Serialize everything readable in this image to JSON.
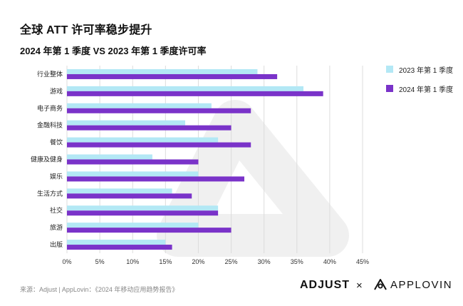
{
  "title": "全球 ATT 许可率稳步提升",
  "subtitle": "2024 年第 1 季度 VS 2023 年第 1 季度许可率",
  "source": "来源：Adjust | AppLovin：《2024 年移动应用趋势报告》",
  "logos": {
    "adjust": "ADJUST",
    "times": "×",
    "applovin": "APPLOVIN"
  },
  "colors": {
    "series_2023": "#b3e8f5",
    "series_2024": "#7a33c9"
  },
  "chart_data": {
    "type": "bar",
    "orientation": "horizontal",
    "categories": [
      "行业整体",
      "游戏",
      "电子商务",
      "金融科技",
      "餐饮",
      "健康及健身",
      "娱乐",
      "生活方式",
      "社交",
      "旅游",
      "出版"
    ],
    "series": [
      {
        "name": "2023 年第 1 季度",
        "values": [
          29,
          36,
          22,
          18,
          23,
          13,
          20,
          16,
          23,
          20,
          15
        ]
      },
      {
        "name": "2024 年第 1 季度",
        "values": [
          32,
          39,
          28,
          25,
          28,
          20,
          27,
          19,
          23,
          25,
          16
        ]
      }
    ],
    "xlim": [
      0,
      45
    ],
    "xticks": [
      "0%",
      "5%",
      "10%",
      "15%",
      "20%",
      "25%",
      "30%",
      "35%",
      "40%",
      "45%"
    ],
    "tick_values": [
      0,
      5,
      10,
      15,
      20,
      25,
      30,
      35,
      40,
      45
    ],
    "grid": "vertical",
    "legend_position": "right"
  }
}
